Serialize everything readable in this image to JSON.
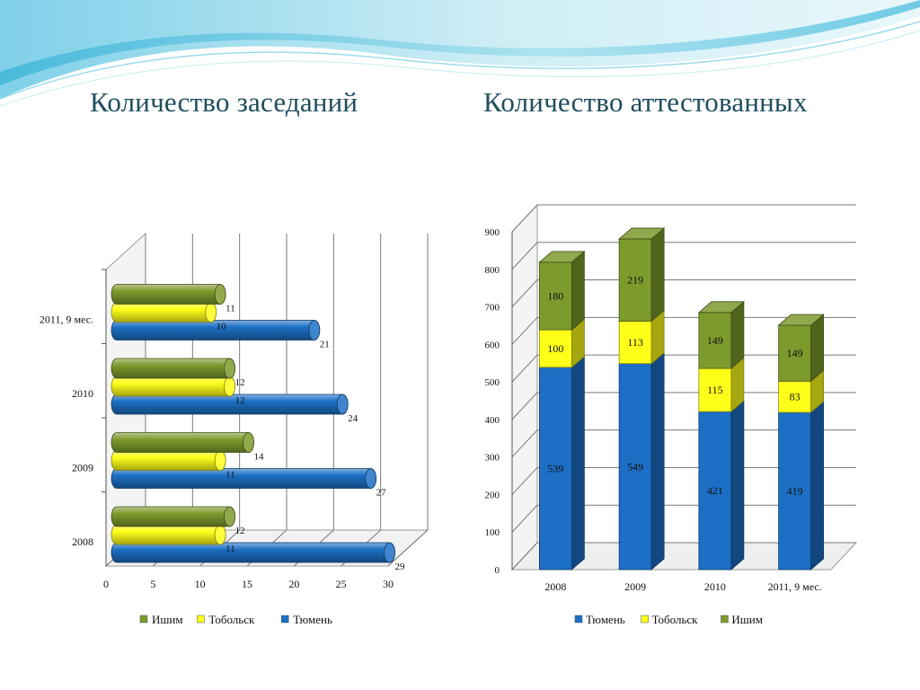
{
  "slide": {
    "title_left": "Количество заседаний",
    "title_right": "Количество аттестованных"
  },
  "colors": {
    "title": "#1f4e5e",
    "tyumen": "#1c6fc4",
    "tobolsk": "#ffff1a",
    "ishim": "#7d9a2d"
  },
  "chart_data": [
    {
      "type": "bar",
      "orientation": "horizontal",
      "style": "3d-cylinder",
      "categories": [
        "2008",
        "2009",
        "2010",
        "2011, 9 мес."
      ],
      "series": [
        {
          "name": "Ишим",
          "values": [
            12,
            14,
            12,
            11
          ]
        },
        {
          "name": "Тобольск",
          "values": [
            11,
            11,
            12,
            10
          ]
        },
        {
          "name": "Тюмень",
          "values": [
            29,
            27,
            24,
            21
          ]
        }
      ],
      "xticks": [
        "0",
        "5",
        "10",
        "15",
        "20",
        "25",
        "30"
      ],
      "xlim": [
        0,
        30
      ],
      "grid": true,
      "legend_position": "bottom"
    },
    {
      "type": "bar",
      "stacked": true,
      "style": "3d-column",
      "categories": [
        "2008",
        "2009",
        "2010",
        "2011, 9 мес."
      ],
      "series": [
        {
          "name": "Тюмень",
          "values": [
            539,
            549,
            421,
            419
          ]
        },
        {
          "name": "Тобольск",
          "values": [
            100,
            113,
            115,
            83
          ]
        },
        {
          "name": "Ишим",
          "values": [
            180,
            219,
            149,
            149
          ]
        }
      ],
      "yticks": [
        "0",
        "100",
        "200",
        "300",
        "400",
        "500",
        "600",
        "700",
        "800",
        "900"
      ],
      "ylim": [
        0,
        900
      ],
      "grid": true,
      "legend_position": "bottom"
    }
  ]
}
